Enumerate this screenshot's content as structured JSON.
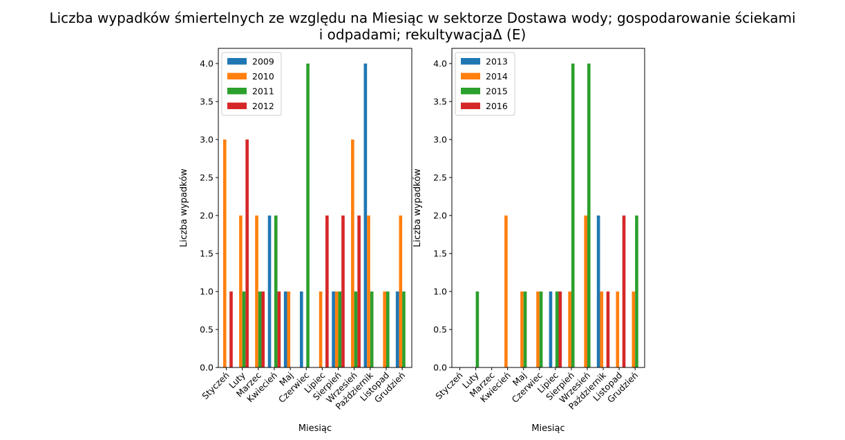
{
  "title_line1": "Liczba wypadków śmiertelnych ze względu na Miesiąc w sektorze Dostawa wody; gospodarowanie ściekami",
  "title_line2": "i odpadami;  rekultywacjaΔ  (E)",
  "chart_data": [
    {
      "type": "bar",
      "xlabel": "Miesiąc",
      "ylabel": "Liczba wypadków",
      "ylim": [
        0,
        4.2
      ],
      "yticks": [
        "0.0",
        "0.5",
        "1.0",
        "1.5",
        "2.0",
        "2.5",
        "3.0",
        "3.5",
        "4.0"
      ],
      "legend_position": "top-left",
      "categories": [
        "Styczeń",
        "Luty",
        "Marzec",
        "Kwiecień",
        "Maj",
        "Czerwiec",
        "Lipiec",
        "Sierpień",
        "Wrzesień",
        "Październik",
        "Listopad",
        "Grudzień"
      ],
      "series": [
        {
          "name": "2009",
          "color": "#1f77b4",
          "values": [
            0,
            0,
            0,
            2,
            1,
            1,
            0,
            1,
            0,
            4,
            0,
            1
          ]
        },
        {
          "name": "2010",
          "color": "#ff7f0e",
          "values": [
            3,
            2,
            2,
            0,
            1,
            0,
            1,
            1,
            3,
            2,
            1,
            2
          ]
        },
        {
          "name": "2011",
          "color": "#2ca02c",
          "values": [
            0,
            1,
            1,
            2,
            0,
            4,
            0,
            1,
            1,
            1,
            1,
            1
          ]
        },
        {
          "name": "2012",
          "color": "#d62728",
          "values": [
            1,
            3,
            1,
            1,
            0,
            0,
            2,
            2,
            2,
            0,
            0,
            0
          ]
        }
      ]
    },
    {
      "type": "bar",
      "xlabel": "Miesiąc",
      "ylabel": "Liczba wypadków",
      "ylim": [
        0,
        4.2
      ],
      "yticks": [
        "0.0",
        "0.5",
        "1.0",
        "1.5",
        "2.0",
        "2.5",
        "3.0",
        "3.5",
        "4.0"
      ],
      "legend_position": "top-left",
      "categories": [
        "Styczeń",
        "Luty",
        "Marzec",
        "Kwiecień",
        "Maj",
        "Czerwiec",
        "Lipiec",
        "Sierpień",
        "Wrzesień",
        "Październik",
        "Listopad",
        "Grudzień"
      ],
      "series": [
        {
          "name": "2013",
          "color": "#1f77b4",
          "values": [
            0,
            0,
            0,
            0,
            0,
            0,
            1,
            0,
            0,
            2,
            0,
            0
          ]
        },
        {
          "name": "2014",
          "color": "#ff7f0e",
          "values": [
            0,
            0,
            0,
            2,
            1,
            1,
            0,
            1,
            2,
            1,
            1,
            1
          ]
        },
        {
          "name": "2015",
          "color": "#2ca02c",
          "values": [
            0,
            1,
            0,
            0,
            1,
            1,
            1,
            4,
            4,
            0,
            0,
            2
          ]
        },
        {
          "name": "2016",
          "color": "#d62728",
          "values": [
            0,
            0,
            0,
            0,
            0,
            0,
            1,
            0,
            0,
            1,
            2,
            0
          ]
        }
      ]
    }
  ]
}
